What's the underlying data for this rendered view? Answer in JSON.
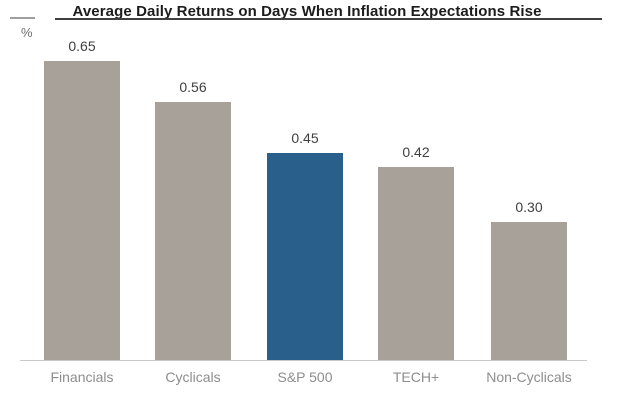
{
  "chart_data": {
    "type": "bar",
    "title": "Average Daily Returns on Days When Inflation Expectations Rise",
    "ylabel": "%",
    "xlabel": "",
    "categories": [
      "Financials",
      "Cyclicals",
      "S&P 500",
      "TECH+",
      "Non-Cyclicals"
    ],
    "values": [
      0.65,
      0.56,
      0.45,
      0.42,
      0.3
    ],
    "value_labels": [
      "0.65",
      "0.56",
      "0.45",
      "0.42",
      "0.30"
    ],
    "highlight_category": "S&P 500",
    "ylim": [
      0,
      0.78
    ],
    "grid": false,
    "legend": false,
    "colors": {
      "bar_default": "#a8a19a",
      "bar_highlight": "#28608b",
      "title_text": "#1c1c1c",
      "title_rule": "#3f3f3f",
      "top_left_rule": "#9e9e9e",
      "value_label": "#404040",
      "category_label": "#8d8d8d",
      "axis_line": "#c9c9c9",
      "unit_label": "#6e6e6e",
      "background": "#ffffff"
    }
  }
}
